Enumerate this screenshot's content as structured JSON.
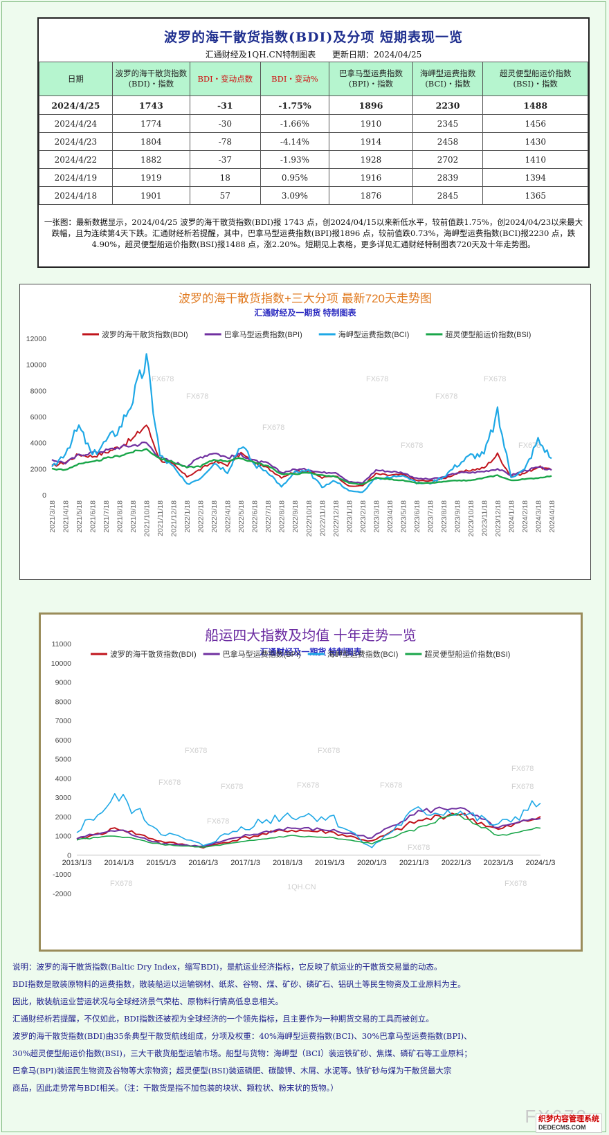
{
  "table": {
    "title": "波罗的海干散货指数(BDI)及分项 短期表现一览",
    "source": "汇通财经及1QH.CN特制图表",
    "update": "更新日期：2024/04/25",
    "headers": [
      "日期",
      "波罗的海干散货指数\n(BDI)・指数",
      "BDI・变动点数",
      "BDI・变动%",
      "巴拿马型运费指数\n(BPI)・指数",
      "海岬型运费指数\n(BCI)・指数",
      "超灵便型船运价指数\n(BSI)・指数"
    ],
    "rows": [
      [
        "2024/4/25",
        "1743",
        "-31",
        "-1.75%",
        "1896",
        "2230",
        "1488"
      ],
      [
        "2024/4/24",
        "1774",
        "-30",
        "-1.66%",
        "1910",
        "2345",
        "1456"
      ],
      [
        "2024/4/23",
        "1804",
        "-78",
        "-4.14%",
        "1914",
        "2458",
        "1430"
      ],
      [
        "2024/4/22",
        "1882",
        "-37",
        "-1.93%",
        "1928",
        "2702",
        "1410"
      ],
      [
        "2024/4/19",
        "1919",
        "18",
        "0.95%",
        "1916",
        "2839",
        "1394"
      ],
      [
        "2024/4/18",
        "1901",
        "57",
        "3.09%",
        "1876",
        "2845",
        "1365"
      ]
    ],
    "note": "一张图：最新数据显示，2024/04/25 波罗的海干散货指数(BDI)报 1743 点，创2024/04/15以来新低水平，较前值跌1.75%，创2024/04/23以来最大跌幅，且为连续第4天下跌。汇通财经析若提醒，其中，巴拿马型运费指数(BPI)报1896 点，较前值跌0.73%，海岬型运费指数(BCI)报2230 点，跌4.90%，超灵便型船运价指数(BSI)报1488 点，涨2.20%。短期见上表格，更多详见汇通财经特制图表720天及十年走势图。"
  },
  "colors": {
    "bdi": "#c0141c",
    "bpi": "#7030a0",
    "bci": "#1ea8e6",
    "bsi": "#1aa64a",
    "title1": "#e07a20",
    "title2": "#6a2aa0"
  },
  "chart_data": [
    {
      "type": "line",
      "title": "波罗的海干散货指数+三大分项 最新720天走势图",
      "subtitle": "汇通财经及一期货 特制图表",
      "legend": "top",
      "grid": false,
      "ylim": [
        0,
        12000
      ],
      "yticks": [
        "0",
        "2000",
        "4000",
        "6000",
        "8000",
        "10000",
        "12000"
      ],
      "x": [
        "2021/3/18",
        "2021/4/18",
        "2021/5/18",
        "2021/6/18",
        "2021/7/18",
        "2021/8/18",
        "2021/9/18",
        "2021/10/18",
        "2021/11/18",
        "2021/12/18",
        "2022/1/18",
        "2022/2/18",
        "2022/3/18",
        "2022/4/18",
        "2022/5/18",
        "2022/6/18",
        "2022/7/18",
        "2022/8/18",
        "2022/9/18",
        "2022/10/18",
        "2022/11/18",
        "2022/12/18",
        "2023/1/18",
        "2023/2/18",
        "2023/3/18",
        "2023/4/18",
        "2023/5/18",
        "2023/6/18",
        "2023/7/18",
        "2023/8/18",
        "2023/9/18",
        "2023/10/18",
        "2023/11/18",
        "2023/12/18",
        "2024/1/18",
        "2024/2/18",
        "2024/3/18",
        "2024/4/18"
      ],
      "series": [
        {
          "name": "波罗的海干散货指数(BDI)",
          "key": "bdi",
          "values": [
            2200,
            2500,
            3100,
            2950,
            3250,
            3700,
            4300,
            5400,
            2700,
            2300,
            1400,
            1950,
            2550,
            2300,
            3200,
            2400,
            2050,
            1350,
            1800,
            1850,
            1300,
            1500,
            650,
            700,
            1600,
            1500,
            1550,
            1100,
            1050,
            1250,
            1650,
            1900,
            2050,
            3100,
            1400,
            1650,
            2150,
            1900
          ]
        },
        {
          "name": "巴拿马型运费指数(BPI)",
          "key": "bpi",
          "values": [
            2700,
            2450,
            3050,
            3250,
            3400,
            3650,
            3800,
            4000,
            2850,
            2500,
            2200,
            2900,
            3250,
            2850,
            3100,
            2600,
            2400,
            1700,
            1950,
            1950,
            1700,
            1750,
            1000,
            900,
            1900,
            1800,
            1700,
            1250,
            1200,
            1350,
            1700,
            1700,
            1800,
            2000,
            1500,
            1850,
            2100,
            1900
          ]
        },
        {
          "name": "海岬型运费指数(BCI)",
          "key": "bci",
          "values": [
            2000,
            3300,
            5200,
            3000,
            4100,
            5100,
            7400,
            10300,
            3000,
            2100,
            800,
            1300,
            2500,
            1800,
            3900,
            2300,
            1800,
            600,
            1700,
            1800,
            600,
            1100,
            300,
            200,
            1300,
            1300,
            1600,
            900,
            900,
            1400,
            2300,
            3000,
            3100,
            6200,
            1400,
            1900,
            4200,
            2800
          ]
        },
        {
          "name": "超灵便型船运价指数(BSI)",
          "key": "bsi",
          "values": [
            2000,
            1900,
            2400,
            2500,
            2800,
            3000,
            3300,
            3500,
            2800,
            2500,
            2100,
            2200,
            2700,
            2600,
            2800,
            2500,
            2200,
            1600,
            1600,
            1700,
            1500,
            1400,
            900,
            800,
            1300,
            1200,
            1100,
            900,
            900,
            1000,
            1100,
            1100,
            1300,
            1500,
            1100,
            1200,
            1300,
            1450
          ]
        }
      ]
    },
    {
      "type": "line",
      "title": "船运四大指数及均值 十年走势一览",
      "subtitle": "汇通财经及一期货 特制图表",
      "legend": "top",
      "grid": false,
      "ylim": [
        -2000,
        11000
      ],
      "yticks": [
        "-2000",
        "-1000",
        "0",
        "1000",
        "2000",
        "3000",
        "4000",
        "5000",
        "6000",
        "7000",
        "8000",
        "9000",
        "10000",
        "11000"
      ],
      "x": [
        "2013/1/3",
        "2014/1/3",
        "2015/1/3",
        "2016/1/3",
        "2017/1/3",
        "2018/1/3",
        "2019/1/3",
        "2020/1/3",
        "2021/1/3",
        "2022/1/3",
        "2023/1/3",
        "2024/1/3"
      ],
      "series": [
        {
          "name": "波罗的海干散货指数(BDI)",
          "key": "bdi",
          "values": [
            800,
            1400,
            700,
            400,
            900,
            1300,
            1200,
            700,
            1700,
            2200,
            1300,
            2000
          ]
        },
        {
          "name": "巴拿马型运费指数(BPI)",
          "key": "bpi",
          "values": [
            900,
            1300,
            600,
            450,
            1000,
            1400,
            1300,
            900,
            2200,
            2500,
            1400,
            1900
          ]
        },
        {
          "name": "海岬型运费指数(BCI)",
          "key": "bci",
          "values": [
            1300,
            3000,
            1200,
            500,
            1500,
            2100,
            2000,
            400,
            2200,
            2300,
            1500,
            2700
          ]
        },
        {
          "name": "超灵便型船运价指数(BSI)",
          "key": "bsi",
          "values": [
            800,
            1000,
            550,
            400,
            700,
            1000,
            900,
            600,
            1300,
            2200,
            1000,
            1400
          ]
        }
      ]
    }
  ],
  "watermarks": {
    "fx": "FX678",
    "qh": "1QH.CN",
    "big": "FX678"
  },
  "explain": [
    "说明：波罗的海干散货指数(Baltic Dry Index，缩写BDI)，是航运业经济指标，它反映了航运业的干散货交易量的动态。",
    "BDI指数是散装原物料的运费指数，散装船运以运输钢材、纸浆、谷物、煤、矿砂、磷矿石、铝矾土等民生物资及工业原料为主。",
    "因此，散装航运业营运状况与全球经济景气荣枯、原物料行情高低息息相关。",
    "汇通财经析若提醒，不仅如此，BDI指数还被视为全球经济的一个领先指标，且主要作为一种期货交易的工具而被创立。",
    "波罗的海干散货指数(BDI)由35条典型干散货航线组成，分项及权重：40%海岬型运费指数(BCI)、30%巴拿马型运费指数(BPI)、",
    "30%超灵便型船运价指数(BSI)，三大干散货船型运输市场。船型与货物：海岬型（BCI）装运铁矿砂、焦煤、磷矿石等工业原料；",
    "巴拿马(BPI)装运民生物资及谷物等大宗物资；超灵便型(BSI)装运磷肥、碳酸钾、木屑、水泥等。铁矿砂与煤为干散货最大宗",
    "商品，因此走势常与BDI相关。（注：干散货是指不加包装的块状、颗粒状、粉末状的货物。）"
  ],
  "badge": {
    "name": "织梦内容管理系统",
    "url": "DEDECMS.COM"
  }
}
